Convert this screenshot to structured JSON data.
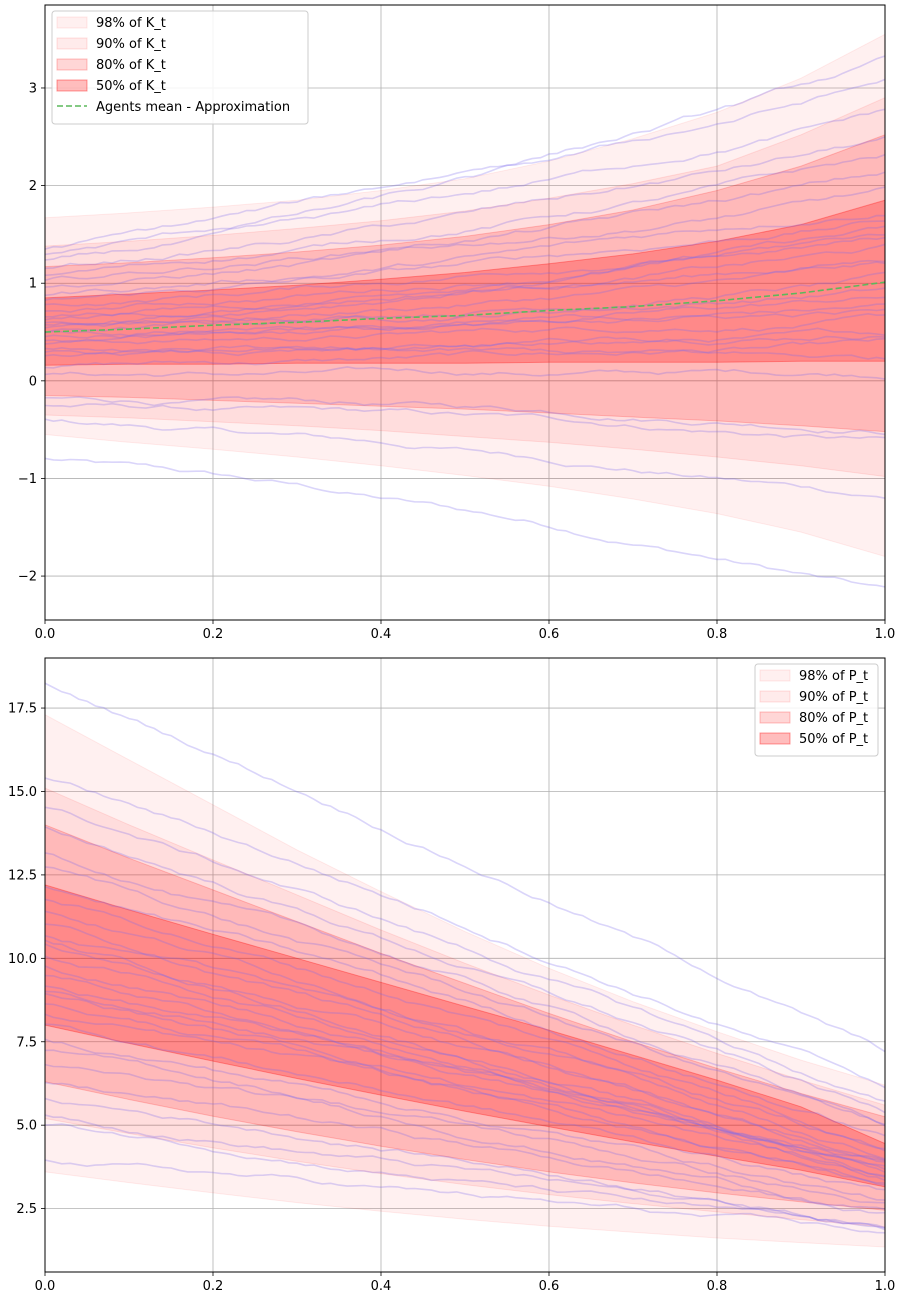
{
  "chart_data": [
    {
      "type": "area",
      "title": "",
      "xlabel": "",
      "ylabel": "",
      "xlim": [
        0,
        1
      ],
      "ylim": [
        -2.45,
        3.85
      ],
      "grid": true,
      "legend_position": "top-left",
      "x_ticks": [
        0,
        0.2,
        0.4,
        0.6,
        0.8,
        1
      ],
      "x_tick_labels": [
        "0.0",
        "0.2",
        "0.4",
        "0.6",
        "0.8",
        "1.0"
      ],
      "y_ticks": [
        -2,
        -1,
        0,
        1,
        2,
        3
      ],
      "y_tick_labels": [
        "−2",
        "−1",
        "0",
        "1",
        "2",
        "3"
      ],
      "x": [
        0,
        0.1,
        0.2,
        0.3,
        0.4,
        0.5,
        0.6,
        0.7,
        0.8,
        0.9,
        1.0
      ],
      "bands": [
        {
          "name": "98% of K_t",
          "color": "#ff0000",
          "alpha": 0.06,
          "lower": [
            -0.55,
            -0.63,
            -0.7,
            -0.78,
            -0.87,
            -0.97,
            -1.08,
            -1.21,
            -1.36,
            -1.55,
            -1.8
          ],
          "upper": [
            1.67,
            1.72,
            1.78,
            1.85,
            1.95,
            2.07,
            2.25,
            2.48,
            2.75,
            3.1,
            3.55
          ]
        },
        {
          "name": "90% of K_t",
          "color": "#ff0000",
          "alpha": 0.08,
          "lower": [
            -0.35,
            -0.38,
            -0.42,
            -0.46,
            -0.51,
            -0.57,
            -0.63,
            -0.7,
            -0.78,
            -0.87,
            -0.98
          ],
          "upper": [
            1.38,
            1.43,
            1.49,
            1.56,
            1.64,
            1.74,
            1.87,
            2.02,
            2.2,
            2.52,
            2.9
          ]
        },
        {
          "name": "80% of K_t",
          "color": "#ff0000",
          "alpha": 0.16,
          "lower": [
            -0.15,
            -0.17,
            -0.2,
            -0.23,
            -0.26,
            -0.29,
            -0.33,
            -0.37,
            -0.41,
            -0.46,
            -0.52
          ],
          "upper": [
            1.17,
            1.21,
            1.26,
            1.32,
            1.39,
            1.48,
            1.6,
            1.75,
            1.95,
            2.2,
            2.52
          ]
        },
        {
          "name": "50% of K_t",
          "color": "#ff0000",
          "alpha": 0.26,
          "lower": [
            0.16,
            0.17,
            0.17,
            0.18,
            0.18,
            0.18,
            0.19,
            0.19,
            0.19,
            0.2,
            0.2
          ],
          "upper": [
            0.85,
            0.89,
            0.93,
            0.98,
            1.04,
            1.11,
            1.2,
            1.3,
            1.43,
            1.6,
            1.85
          ]
        }
      ],
      "mean_line": {
        "name": "Agents mean - Approximation",
        "color": "#5cb85c",
        "values": [
          0.5,
          0.53,
          0.57,
          0.6,
          0.64,
          0.67,
          0.72,
          0.76,
          0.82,
          0.9,
          1.01
        ]
      },
      "sample_paths": {
        "color": "#7b68ee",
        "alpha": 0.28,
        "count": 30,
        "start": [
          -0.8,
          -0.4,
          -0.25,
          -0.18,
          0.05,
          0.15,
          0.25,
          0.32,
          0.38,
          0.42,
          0.45,
          0.5,
          0.55,
          0.58,
          0.62,
          0.67,
          0.72,
          0.77,
          0.82,
          0.88,
          0.95,
          1.02,
          1.08,
          1.15,
          1.22,
          1.3,
          1.36,
          0.3,
          0.6,
          0.48
        ],
        "end": [
          -2.15,
          -1.18,
          -0.62,
          -0.45,
          0.08,
          0.35,
          0.45,
          0.55,
          0.65,
          0.75,
          0.85,
          0.95,
          1.05,
          1.15,
          1.25,
          1.35,
          1.45,
          1.55,
          1.65,
          1.78,
          1.92,
          2.1,
          2.28,
          2.45,
          2.75,
          3.05,
          3.25,
          0.2,
          1.5,
          0.7
        ]
      }
    },
    {
      "type": "area",
      "title": "",
      "xlabel": "",
      "ylabel": "",
      "xlim": [
        0,
        1
      ],
      "ylim": [
        0.6,
        19.0
      ],
      "grid": true,
      "legend_position": "top-right",
      "x_ticks": [
        0,
        0.2,
        0.4,
        0.6,
        0.8,
        1
      ],
      "x_tick_labels": [
        "0.0",
        "0.2",
        "0.4",
        "0.6",
        "0.8",
        "1.0"
      ],
      "y_ticks": [
        2.5,
        5,
        7.5,
        10,
        12.5,
        15,
        17.5
      ],
      "y_tick_labels": [
        "2.5",
        "5.0",
        "7.5",
        "10.0",
        "12.5",
        "15.0",
        "17.5"
      ],
      "x": [
        0,
        0.1,
        0.2,
        0.3,
        0.4,
        0.5,
        0.6,
        0.7,
        0.8,
        0.9,
        1.0
      ],
      "bands": [
        {
          "name": "98% of P_t",
          "color": "#ff0000",
          "alpha": 0.06,
          "lower": [
            3.6,
            3.28,
            2.97,
            2.68,
            2.42,
            2.18,
            1.97,
            1.79,
            1.62,
            1.48,
            1.35
          ],
          "upper": [
            17.3,
            15.95,
            14.6,
            13.25,
            12.0,
            10.8,
            9.7,
            8.7,
            7.8,
            6.95,
            6.2
          ]
        },
        {
          "name": "90% of P_t",
          "color": "#ff0000",
          "alpha": 0.08,
          "lower": [
            5.2,
            4.75,
            4.32,
            3.92,
            3.55,
            3.22,
            2.92,
            2.65,
            2.4,
            2.17,
            1.95
          ],
          "upper": [
            15.1,
            14.0,
            12.95,
            11.9,
            10.85,
            9.85,
            8.9,
            8.0,
            7.15,
            6.35,
            5.6
          ]
        },
        {
          "name": "80% of P_t",
          "color": "#ff0000",
          "alpha": 0.16,
          "lower": [
            6.3,
            5.77,
            5.27,
            4.8,
            4.37,
            3.97,
            3.6,
            3.27,
            2.97,
            2.7,
            2.45
          ],
          "upper": [
            14.0,
            13.0,
            12.05,
            11.1,
            10.15,
            9.25,
            8.35,
            7.5,
            6.7,
            5.95,
            5.25
          ]
        },
        {
          "name": "50% of P_t",
          "color": "#ff0000",
          "alpha": 0.26,
          "lower": [
            8.0,
            7.45,
            6.92,
            6.4,
            5.9,
            5.42,
            4.95,
            4.5,
            4.07,
            3.65,
            3.15
          ],
          "upper": [
            12.2,
            11.45,
            10.72,
            10.0,
            9.28,
            8.56,
            7.85,
            7.1,
            6.35,
            5.55,
            4.45
          ]
        }
      ],
      "sample_paths": {
        "color": "#7b68ee",
        "alpha": 0.28,
        "count": 30,
        "start": [
          18.2,
          15.4,
          14.5,
          13.9,
          13.2,
          12.7,
          12.2,
          11.8,
          11.4,
          11.0,
          10.7,
          10.4,
          10.1,
          9.8,
          9.5,
          9.2,
          8.9,
          8.6,
          8.3,
          8.0,
          7.6,
          7.2,
          6.8,
          6.3,
          5.8,
          5.3,
          5.0,
          4.0,
          9.0,
          10.5
        ],
        "end": [
          7.2,
          6.2,
          5.6,
          5.3,
          5.0,
          4.9,
          4.7,
          4.5,
          4.3,
          4.1,
          4.0,
          3.9,
          3.8,
          3.7,
          3.6,
          3.5,
          3.4,
          3.3,
          3.2,
          3.0,
          2.8,
          2.6,
          2.5,
          2.3,
          2.1,
          1.9,
          1.7,
          1.6,
          3.9,
          3.5
        ]
      }
    }
  ]
}
